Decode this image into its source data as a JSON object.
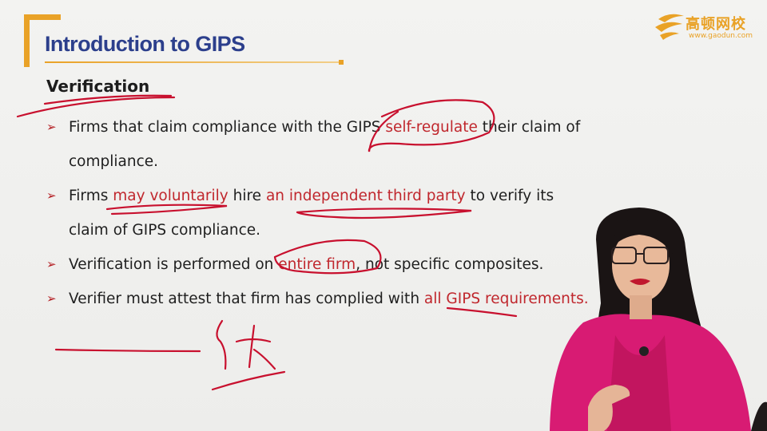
{
  "header": {
    "title": "Introduction to GIPS",
    "accent_color": "#e9a227",
    "title_color": "#2c3f8c"
  },
  "logo": {
    "name": "高顿网校",
    "url": "www.gaodun.com",
    "icon": "gaodun-logo-icon"
  },
  "section": {
    "heading": "Verification"
  },
  "bullets": [
    {
      "parts": [
        {
          "text": "Firms that claim compliance with the GIPS ",
          "highlight": false
        },
        {
          "text": "self-regulate",
          "highlight": true
        },
        {
          "text": " their claim of compliance.",
          "highlight": false
        }
      ]
    },
    {
      "parts": [
        {
          "text": "Firms ",
          "highlight": false
        },
        {
          "text": "may voluntarily",
          "highlight": true
        },
        {
          "text": " hire ",
          "highlight": false
        },
        {
          "text": "an independent third party",
          "highlight": true
        },
        {
          "text": " to verify its claim of GIPS compliance.",
          "highlight": false
        }
      ]
    },
    {
      "parts": [
        {
          "text": "Verification is performed on ",
          "highlight": false
        },
        {
          "text": "entire firm",
          "highlight": true
        },
        {
          "text": ", not specific composites.",
          "highlight": false
        }
      ]
    },
    {
      "parts": [
        {
          "text": "Verifier must attest that firm has complied with ",
          "highlight": false
        },
        {
          "text": "all GIPS requirements.",
          "highlight": true
        }
      ]
    }
  ],
  "colors": {
    "bullet_arrow": "#b41f24",
    "highlight_text": "#c0272d",
    "annotation_ink": "#c8102e",
    "presenter_shirt": "#d81b73"
  }
}
